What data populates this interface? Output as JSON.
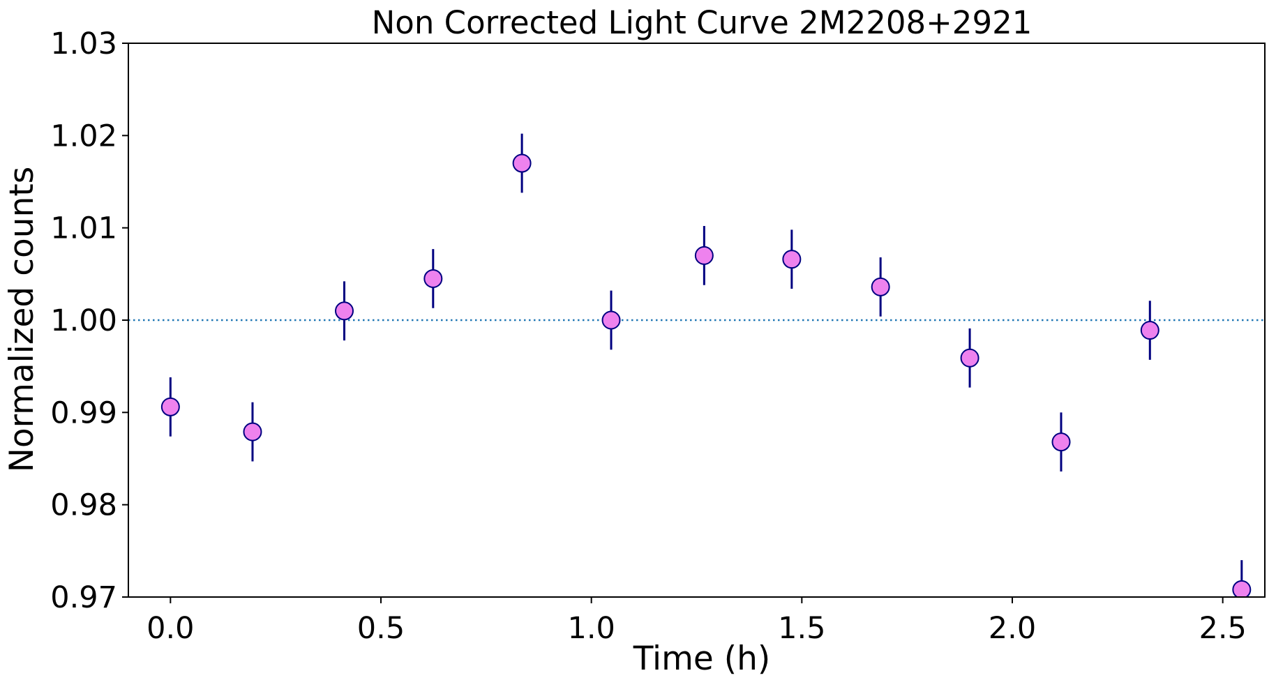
{
  "chart_data": {
    "type": "scatter",
    "title": "Non Corrected Light Curve 2M2208+2921",
    "xlabel": "Time (h)",
    "ylabel": "Normalized counts",
    "xlim": [
      -0.1,
      2.6
    ],
    "ylim": [
      0.97,
      1.03
    ],
    "x_ticks": [
      0.0,
      0.5,
      1.0,
      1.5,
      2.0,
      2.5
    ],
    "x_tick_labels": [
      "0.0",
      "0.5",
      "1.0",
      "1.5",
      "2.0",
      "2.5"
    ],
    "y_ticks": [
      0.97,
      0.98,
      0.99,
      1.0,
      1.01,
      1.02,
      1.03
    ],
    "y_tick_labels": [
      "0.97",
      "0.98",
      "0.99",
      "1.00",
      "1.01",
      "1.02",
      "1.03"
    ],
    "grid": false,
    "reference_line": {
      "y": 1.0,
      "style": "dotted",
      "color": "#1f77b4"
    },
    "marker_color": "#ee82ee",
    "marker_edge_color": "#000080",
    "errorbar_color": "#000080",
    "series": [
      {
        "x": [
          0.0,
          0.195,
          0.413,
          0.624,
          0.835,
          1.047,
          1.268,
          1.476,
          1.687,
          1.899,
          2.116,
          2.327,
          2.545
        ],
        "y": [
          0.9906,
          0.9879,
          1.001,
          1.0045,
          1.017,
          1.0,
          1.007,
          1.0066,
          1.0036,
          0.9959,
          0.9868,
          0.9989,
          0.9708
        ],
        "yerr": [
          0.0032,
          0.0032,
          0.0032,
          0.0032,
          0.0032,
          0.0032,
          0.0032,
          0.0032,
          0.0032,
          0.0032,
          0.0032,
          0.0032,
          0.0032
        ]
      }
    ]
  }
}
